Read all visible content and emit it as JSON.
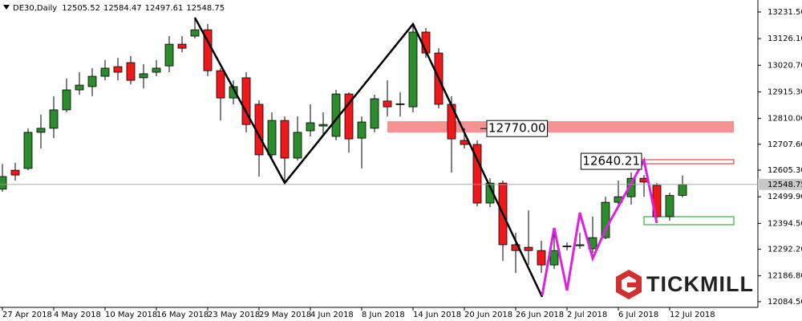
{
  "chart_data": {
    "type": "candlestick",
    "title": "DE30,Daily",
    "categories": [
      "27 Apr 2018",
      null,
      null,
      null,
      "4 May 2018",
      null,
      null,
      null,
      "10 May 2018",
      null,
      null,
      null,
      "16 May 2018",
      null,
      null,
      null,
      "23 May 2018",
      null,
      null,
      null,
      "29 May 2018",
      null,
      null,
      null,
      "4 Jun 2018",
      null,
      null,
      null,
      "8 Jun 2018",
      null,
      null,
      null,
      "14 Jun 2018",
      null,
      null,
      null,
      "20 Jun 2018",
      null,
      null,
      null,
      "26 Jun 2018",
      null,
      null,
      null,
      "2 Jul 2018",
      null,
      null,
      null,
      "6 Jul 2018",
      null,
      null,
      null,
      "12 Jul 2018",
      null
    ],
    "open": [
      12530,
      12605,
      12612,
      12755,
      12771,
      12844,
      12923,
      12936,
      12977,
      13015,
      13031,
      12971,
      12993,
      13018,
      13104,
      13136,
      13161,
      12999,
      12891,
      12971,
      12866,
      12666,
      12802,
      12653,
      12761,
      12780,
      12739,
      12907,
      12732,
      12771,
      12879,
      12866,
      12856,
      13152,
      13069,
      12866,
      12723,
      12707,
      12475,
      12554,
      12310,
      12300,
      12287,
      12230,
      12303,
      12306,
      12294,
      12338,
      12478,
      12500,
      12573,
      12545,
      12421,
      12505.52
    ],
    "high": [
      12630,
      12634,
      12771,
      12825,
      12898,
      12968,
      12993,
      13009,
      13041,
      13050,
      13057,
      13025,
      13041,
      13136,
      13136,
      13209,
      13184,
      13009,
      12961,
      12993,
      12882,
      12834,
      12818,
      12818,
      12866,
      12834,
      12923,
      12914,
      12818,
      12904,
      12961,
      12914,
      13184,
      13168,
      13088,
      12898,
      12771,
      12723,
      12573,
      12564,
      12357,
      12446,
      12326,
      12373,
      12319,
      12357,
      12421,
      12500,
      12564,
      12596,
      12586,
      12554,
      12516,
      12584.47
    ],
    "low": [
      12520,
      12564,
      12605,
      12691,
      12732,
      12834,
      12904,
      12898,
      12961,
      12961,
      12945,
      12929,
      12977,
      12993,
      13072,
      13126,
      12977,
      12802,
      12866,
      12755,
      12580,
      12650,
      12548,
      12643,
      12739,
      12739,
      12723,
      12675,
      12612,
      12755,
      12818,
      12818,
      12834,
      13050,
      12850,
      12596,
      12691,
      12462,
      12459,
      12246,
      12198,
      12230,
      12198,
      12214,
      12287,
      12294,
      12278,
      12332,
      12469,
      12469,
      12500,
      12405,
      12405,
      12497.61
    ],
    "close": [
      12580,
      12586,
      12755,
      12771,
      12844,
      12923,
      12942,
      12977,
      13009,
      12993,
      12961,
      12987,
      13009,
      13104,
      13088,
      13161,
      12999,
      12891,
      12936,
      12786,
      12666,
      12802,
      12653,
      12755,
      12793,
      12786,
      12907,
      12729,
      12796,
      12888,
      12856,
      12868,
      13152,
      13069,
      12866,
      12729,
      12707,
      12475,
      12554,
      12310,
      12287,
      12287,
      12230,
      12287,
      12305,
      12310,
      12338,
      12478,
      12500,
      12573,
      12558,
      12421,
      12505,
      12548.75
    ],
    "up_color": "#2a8c2a",
    "down_color": "#f01818",
    "ylim": [
      12062,
      13279
    ],
    "yticks": [
      {
        "value": 13231.5,
        "label": "13231.50"
      },
      {
        "value": 13126.1,
        "label": "13126.10"
      },
      {
        "value": 13020.7,
        "label": "13020.70"
      },
      {
        "value": 12915.3,
        "label": "12915.30"
      },
      {
        "value": 12810,
        "label": "12810.00"
      },
      {
        "value": 12707.6,
        "label": "12707.60"
      },
      {
        "value": 12605.3,
        "label": "12605.30"
      },
      {
        "value": 12499.9,
        "label": "12499.90"
      },
      {
        "value": 12394.5,
        "label": "12394.50"
      },
      {
        "value": 12292.2,
        "label": "12292.20"
      },
      {
        "value": 12186.8,
        "label": "12186.80"
      },
      {
        "value": 12084.5,
        "label": "12084.50"
      }
    ],
    "annotations": [
      {
        "value": 12770,
        "label": "12770.00"
      },
      {
        "value": 12640.21,
        "label": "12640.21"
      }
    ],
    "grid": false
  },
  "logo": "TICKMILL"
}
